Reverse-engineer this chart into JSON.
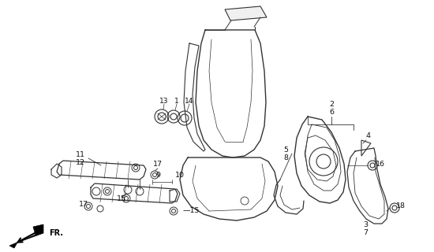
{
  "bg_color": "#ffffff",
  "lc": "#333333",
  "fig_w": 5.5,
  "fig_h": 3.2,
  "dpi": 100,
  "xlim": [
    0,
    550
  ],
  "ylim": [
    0,
    320
  ]
}
